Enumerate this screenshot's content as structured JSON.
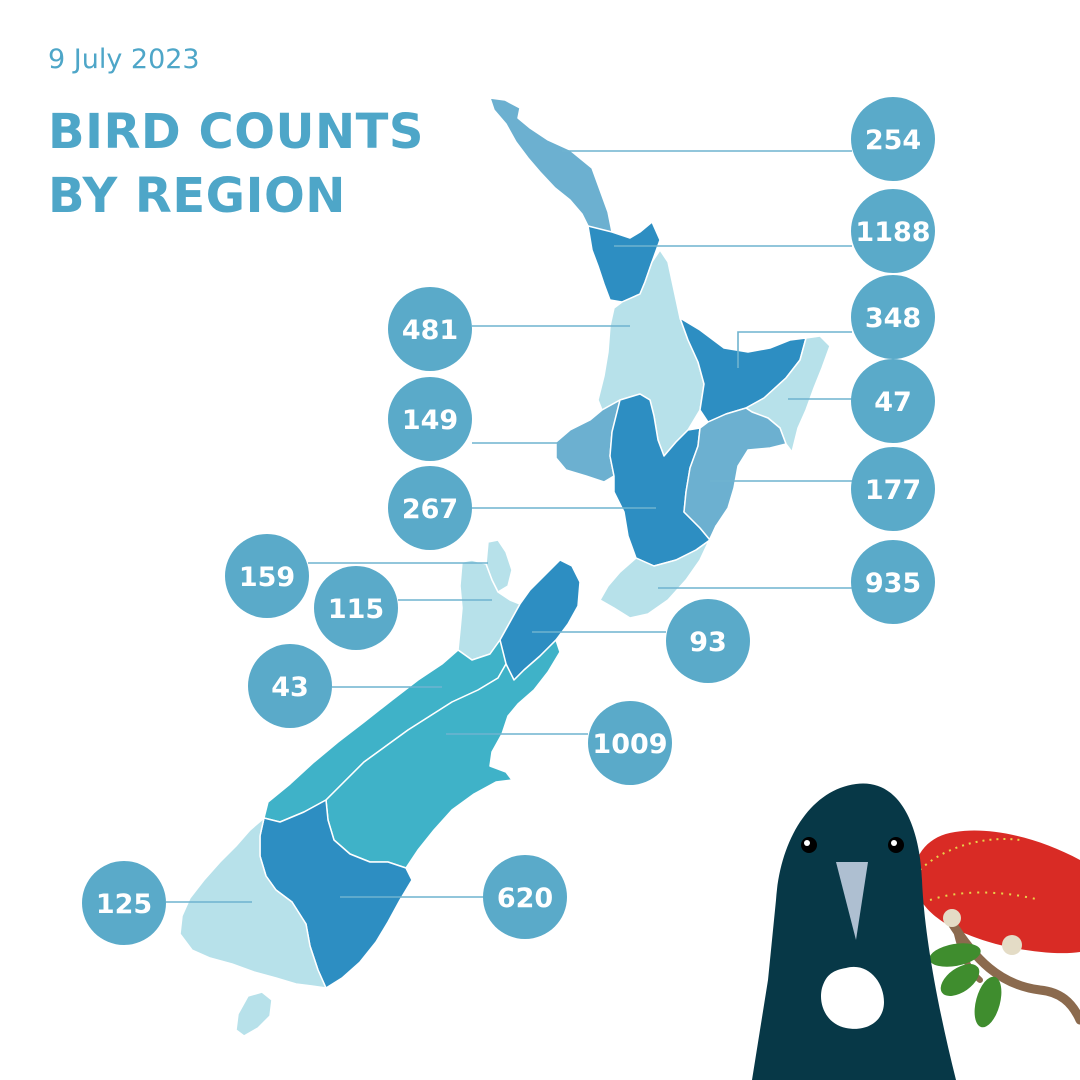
{
  "header": {
    "date": "9 July 2023",
    "title_line1": "BIRD COUNTS",
    "title_line2": "BY REGION"
  },
  "colors": {
    "text": "#4ea6c8",
    "badge": "#5aaac9",
    "leader": "#6fb3cf",
    "shade_lightest": "#b7e1ea",
    "shade_light": "#6cb0d0",
    "shade_mid": "#3fb2c8",
    "shade_dark": "#2d8ec2",
    "bird_body": "#073847",
    "flower": "#d92b25",
    "leaf": "#3f8d2e"
  },
  "regions": [
    {
      "name": "northland",
      "count": "254",
      "shade": "shade_light"
    },
    {
      "name": "auckland",
      "count": "1188",
      "shade": "shade_dark"
    },
    {
      "name": "waikato",
      "count": "481",
      "shade": "shade_lightest"
    },
    {
      "name": "bay-of-plenty",
      "count": "348",
      "shade": "shade_dark"
    },
    {
      "name": "gisborne",
      "count": "47",
      "shade": "shade_lightest"
    },
    {
      "name": "taranaki",
      "count": "149",
      "shade": "shade_light"
    },
    {
      "name": "manawatu-whanganui",
      "count": "267",
      "shade": "shade_dark"
    },
    {
      "name": "hawkes-bay",
      "count": "177",
      "shade": "shade_light"
    },
    {
      "name": "wellington",
      "count": "935",
      "shade": "shade_lightest"
    },
    {
      "name": "nelson",
      "count": "159",
      "shade": "shade_lightest"
    },
    {
      "name": "tasman",
      "count": "115",
      "shade": "shade_lightest"
    },
    {
      "name": "marlborough",
      "count": "93",
      "shade": "shade_dark"
    },
    {
      "name": "west-coast",
      "count": "43",
      "shade": "shade_mid"
    },
    {
      "name": "canterbury",
      "count": "1009",
      "shade": "shade_mid"
    },
    {
      "name": "southland",
      "count": "125",
      "shade": "shade_lightest"
    },
    {
      "name": "otago",
      "count": "620",
      "shade": "shade_dark"
    }
  ]
}
